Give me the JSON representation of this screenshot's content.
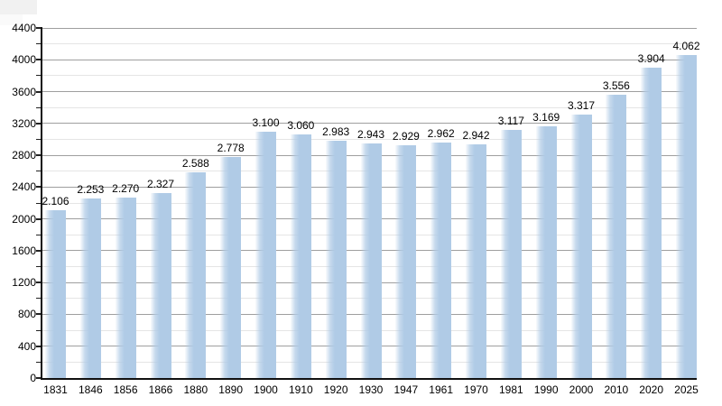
{
  "chart_data": {
    "type": "bar",
    "title": "",
    "xlabel": "",
    "ylabel": "",
    "categories": [
      "1831",
      "1846",
      "1856",
      "1866",
      "1880",
      "1890",
      "1900",
      "1910",
      "1920",
      "1930",
      "1947",
      "1961",
      "1970",
      "1981",
      "1990",
      "2000",
      "2010",
      "2020",
      "2025"
    ],
    "values": [
      2106,
      2253,
      2270,
      2327,
      2588,
      2778,
      3100,
      3060,
      2983,
      2943,
      2929,
      2962,
      2942,
      3117,
      3169,
      3317,
      3556,
      3904,
      4062
    ],
    "value_labels": [
      "2.106",
      "2.253",
      "2.270",
      "2.327",
      "2.588",
      "2.778",
      "3.100",
      "3.060",
      "2.983",
      "2.943",
      "2.929",
      "2.962",
      "2.942",
      "3.117",
      "3.169",
      "3.317",
      "3.556",
      "3.904",
      "4.062"
    ],
    "ylim": [
      0,
      4400
    ],
    "ytick_labels": [
      "0",
      "400",
      "800",
      "1200",
      "1600",
      "2000",
      "2400",
      "2800",
      "3200",
      "3600",
      "4000",
      "4400"
    ],
    "major_tick_step": 400,
    "minor_tick_step": 200,
    "grid": true,
    "legend": "none",
    "bar_color": "#b0cbe6",
    "bar_edge_fade_color": "rgba(176,203,230,0.08)",
    "major_grid_color": "#9f9f9f",
    "minor_grid_color": "#e5e5e5",
    "axis_color": "#111111",
    "text_color": "#000000",
    "background_color": "#ffffff"
  }
}
